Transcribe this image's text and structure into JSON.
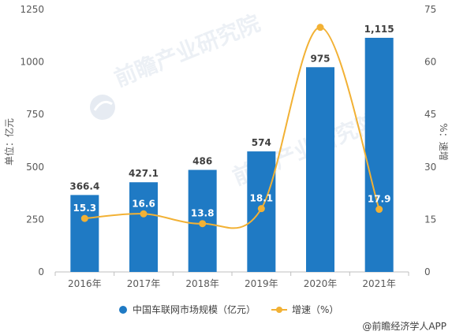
{
  "watermark": "前瞻产业研究院",
  "source": "@前瞻经济学人APP",
  "colors": {
    "bar": "#1f7ac4",
    "line": "#f2b134",
    "axis": "#bfbfbf",
    "text": "#595959"
  },
  "chart_data": {
    "type": "bar",
    "categories": [
      "2016年",
      "2017年",
      "2018年",
      "2019年",
      "2020年",
      "2021年"
    ],
    "series": [
      {
        "name": "中国车联网市场规模（亿元）",
        "type": "bar",
        "axis": "left",
        "values": [
          366.4,
          427.1,
          486,
          574,
          975,
          1115
        ],
        "labels": [
          "366.4",
          "427.1",
          "486",
          "574",
          "975",
          "1,115"
        ]
      },
      {
        "name": "增速（%）",
        "type": "line",
        "axis": "right",
        "values": [
          15.3,
          16.6,
          13.8,
          18.1,
          69.9,
          17.9
        ],
        "labels": [
          "15.3",
          "16.6",
          "13.8",
          "18.1",
          "69.9",
          "17.9"
        ]
      }
    ],
    "ylabel": "单位：亿元",
    "y2label": "%：速增",
    "ylim": [
      0,
      1250
    ],
    "yticks": [
      "0",
      "250",
      "500",
      "750",
      "1000",
      "1250"
    ],
    "y2lim": [
      0,
      75
    ],
    "y2ticks": [
      "0",
      "15",
      "30",
      "45",
      "60",
      "75"
    ],
    "grid": false,
    "legend": "bottom"
  }
}
